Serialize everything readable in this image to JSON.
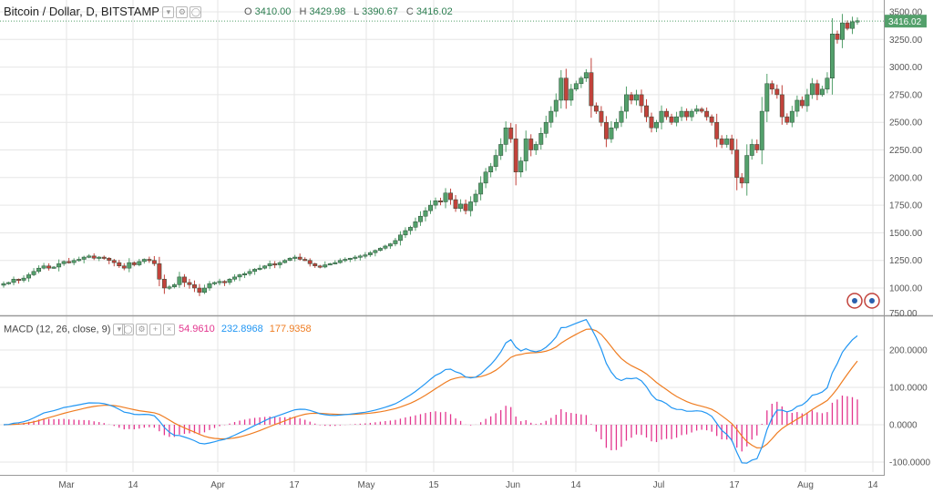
{
  "header": {
    "symbol": "Bitcoin / Dollar, D, BITSTAMP",
    "open_label": "O",
    "open": "3410.00",
    "high_label": "H",
    "high": "3429.98",
    "low_label": "L",
    "low": "3390.67",
    "close_label": "C",
    "close": "3416.02"
  },
  "macd_header": {
    "label": "MACD (12, 26, close, 9)",
    "hist": "54.9610",
    "macd": "232.8968",
    "signal": "177.9358"
  },
  "price_tag": "3416.02",
  "colors": {
    "up": "#53a06b",
    "down": "#c2423b",
    "macd": "#2196f3",
    "signal": "#ef7d22",
    "hist": "#e3358e",
    "grid": "#e6e6e6",
    "tag": "#53a06b"
  },
  "chart_data": [
    {
      "type": "candlestick",
      "title": "Bitcoin / Dollar, D, BITSTAMP",
      "x_ticks": [
        "Mar",
        "14",
        "Apr",
        "17",
        "May",
        "15",
        "Jun",
        "14",
        "Jul",
        "17",
        "Aug",
        "14"
      ],
      "y_ticks": [
        "750.00",
        "1000.00",
        "1250.00",
        "1500.00",
        "1750.00",
        "2000.00",
        "2250.00",
        "2500.00",
        "2750.00",
        "3000.00",
        "3250.00",
        "3500.00"
      ],
      "ylim": [
        750,
        3550
      ],
      "last_price": 3416.02,
      "closes": [
        1040,
        1050,
        1080,
        1070,
        1090,
        1120,
        1150,
        1180,
        1200,
        1180,
        1190,
        1220,
        1240,
        1230,
        1250,
        1260,
        1280,
        1290,
        1270,
        1280,
        1270,
        1250,
        1230,
        1200,
        1180,
        1230,
        1210,
        1240,
        1260,
        1250,
        1220,
        1080,
        1000,
        1010,
        1030,
        1100,
        1050,
        1030,
        1000,
        960,
        1000,
        1040,
        1050,
        1060,
        1050,
        1080,
        1100,
        1120,
        1130,
        1150,
        1170,
        1180,
        1200,
        1220,
        1210,
        1230,
        1250,
        1270,
        1280,
        1260,
        1250,
        1220,
        1200,
        1190,
        1210,
        1220,
        1230,
        1250,
        1260,
        1270,
        1280,
        1290,
        1300,
        1320,
        1340,
        1360,
        1380,
        1400,
        1430,
        1480,
        1520,
        1550,
        1600,
        1650,
        1700,
        1750,
        1790,
        1780,
        1860,
        1800,
        1720,
        1760,
        1700,
        1780,
        1850,
        1950,
        2050,
        2100,
        2200,
        2300,
        2450,
        2350,
        2050,
        2150,
        2350,
        2250,
        2300,
        2400,
        2500,
        2600,
        2700,
        2900,
        2700,
        2800,
        2850,
        2900,
        2950,
        2650,
        2600,
        2500,
        2350,
        2450,
        2500,
        2600,
        2750,
        2700,
        2750,
        2650,
        2550,
        2450,
        2500,
        2600,
        2550,
        2500,
        2550,
        2600,
        2550,
        2600,
        2620,
        2600,
        2550,
        2500,
        2350,
        2300,
        2350,
        2250,
        2000,
        1950,
        2200,
        2300,
        2250,
        2600,
        2850,
        2800,
        2750,
        2550,
        2500,
        2600,
        2700,
        2650,
        2750,
        2850,
        2750,
        2800,
        2900,
        3300,
        3250,
        3400,
        3350,
        3410,
        3420
      ]
    },
    {
      "type": "line",
      "title": "MACD (12, 26, close, 9)",
      "y_ticks": [
        "-100.0000",
        "0.0000",
        "100.0000",
        "200.0000"
      ],
      "ylim": [
        -110,
        280
      ],
      "series": [
        {
          "name": "histogram",
          "last": 54.961
        },
        {
          "name": "macd",
          "last": 232.8968
        },
        {
          "name": "signal",
          "last": 177.9358
        }
      ]
    }
  ]
}
